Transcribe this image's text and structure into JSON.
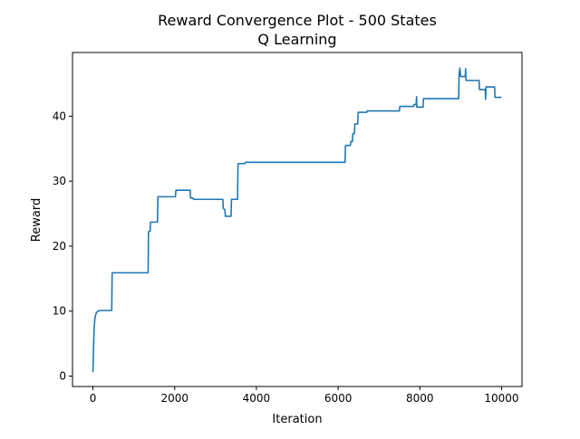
{
  "chart_data": {
    "type": "line",
    "title_line1": "Reward Convergence Plot - 500 States",
    "title_line2": "Q Learning",
    "xlabel": "Iteration",
    "ylabel": "Reward",
    "xlim": [
      -500,
      10500
    ],
    "ylim": [
      -1.6,
      49.8
    ],
    "xticks": [
      0,
      2000,
      4000,
      6000,
      8000,
      10000
    ],
    "xtick_labels": [
      "0",
      "2000",
      "4000",
      "6000",
      "8000",
      "10000"
    ],
    "yticks": [
      0,
      10,
      20,
      30,
      40
    ],
    "ytick_labels": [
      "0",
      "10",
      "20",
      "30",
      "40"
    ],
    "grid": false,
    "legend": "none",
    "series": [
      {
        "color": "#1f77b4",
        "points": [
          [
            0,
            0.6
          ],
          [
            15,
            4.5
          ],
          [
            30,
            7.5
          ],
          [
            50,
            9.0
          ],
          [
            80,
            9.7
          ],
          [
            120,
            10.0
          ],
          [
            200,
            10.1
          ],
          [
            460,
            10.1
          ],
          [
            470,
            15.9
          ],
          [
            1350,
            15.9
          ],
          [
            1360,
            22.2
          ],
          [
            1400,
            22.3
          ],
          [
            1410,
            23.7
          ],
          [
            1580,
            23.7
          ],
          [
            1590,
            27.6
          ],
          [
            2020,
            27.6
          ],
          [
            2030,
            28.6
          ],
          [
            2380,
            28.6
          ],
          [
            2390,
            27.4
          ],
          [
            2450,
            27.4
          ],
          [
            2460,
            27.2
          ],
          [
            3180,
            27.2
          ],
          [
            3190,
            25.8
          ],
          [
            3230,
            25.6
          ],
          [
            3240,
            24.6
          ],
          [
            3380,
            24.6
          ],
          [
            3390,
            27.2
          ],
          [
            3540,
            27.2
          ],
          [
            3550,
            32.7
          ],
          [
            3720,
            32.7
          ],
          [
            3730,
            32.9
          ],
          [
            6170,
            32.9
          ],
          [
            6180,
            35.5
          ],
          [
            6300,
            35.5
          ],
          [
            6310,
            36.1
          ],
          [
            6350,
            36.1
          ],
          [
            6360,
            37.3
          ],
          [
            6400,
            37.3
          ],
          [
            6410,
            38.8
          ],
          [
            6480,
            38.8
          ],
          [
            6490,
            40.6
          ],
          [
            6700,
            40.6
          ],
          [
            6710,
            40.8
          ],
          [
            7500,
            40.8
          ],
          [
            7510,
            41.5
          ],
          [
            7850,
            41.5
          ],
          [
            7860,
            41.8
          ],
          [
            7910,
            41.8
          ],
          [
            7920,
            43.0
          ],
          [
            7925,
            41.4
          ],
          [
            8080,
            41.4
          ],
          [
            8090,
            42.7
          ],
          [
            8950,
            42.7
          ],
          [
            8960,
            46.3
          ],
          [
            8980,
            47.4
          ],
          [
            9000,
            46.1
          ],
          [
            9110,
            46.1
          ],
          [
            9120,
            47.3
          ],
          [
            9130,
            45.5
          ],
          [
            9450,
            45.5
          ],
          [
            9460,
            44.1
          ],
          [
            9600,
            44.1
          ],
          [
            9610,
            42.6
          ],
          [
            9620,
            44.5
          ],
          [
            9830,
            44.5
          ],
          [
            9840,
            42.9
          ],
          [
            10000,
            42.9
          ]
        ]
      }
    ]
  }
}
